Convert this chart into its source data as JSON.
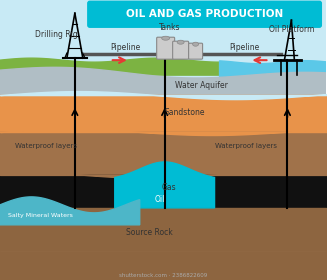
{
  "title": "OIL AND GAS PRODUCTION",
  "title_bg": "#00bcd4",
  "title_color": "white",
  "bg_sky": "#b3e5fc",
  "bg_white": "#ffffff",
  "colors": {
    "sky": "#c8eaf5",
    "grass": "#7cb342",
    "water_surface": "#5bc8e8",
    "layer_gray": "#b0bec5",
    "layer_orange": "#e8934a",
    "layer_brown": "#a0724a",
    "layer_dark_brown": "#7a5230",
    "layer_black": "#111111",
    "layer_source": "#8d6540",
    "gas_cyan": "#00bcd4",
    "salty_water": "#4db6c8",
    "pipeline_red": "#e53935"
  },
  "labels": {
    "drilling_rig": "Drilling Rig",
    "tanks": "Tanks",
    "oil_platform": "Oil Platform",
    "pipeline_left": "Pipeline",
    "pipeline_right": "Pipeline",
    "water_aquifer": "Water Aquifer",
    "sandstone": "Sandstone",
    "waterproof_left": "Waterproof layers",
    "waterproof_right": "Waterproof layers",
    "gas": "Gas",
    "oil": "Oil",
    "salty": "Salty Mineral Waters",
    "source_rock": "Source Rock"
  }
}
